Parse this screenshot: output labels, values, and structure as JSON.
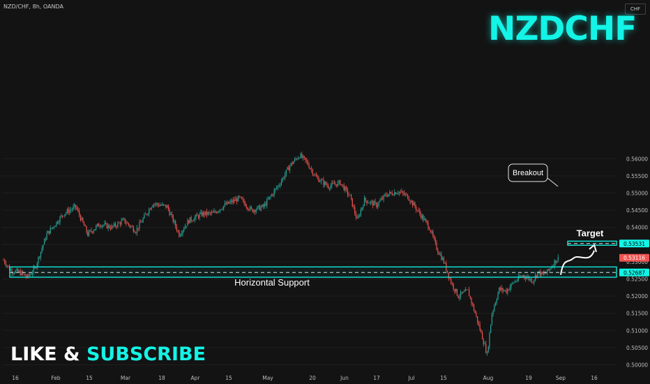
{
  "header": {
    "symbol": "NZD/CHF, 8h, OANDA",
    "currency": "CHF"
  },
  "overlay": {
    "title": "NZDCHF",
    "cta_left": "LIKE & ",
    "cta_right": "SUBSCRIBE",
    "support_label": "Horizontal Support",
    "target_label": "Target",
    "breakout_label": "Breakout"
  },
  "colors": {
    "up": "#26a69a",
    "down": "#ef5350",
    "accent": "#13f4e6",
    "background": "#131313"
  },
  "chart_data": {
    "type": "candlestick",
    "title": "",
    "ylim": [
      0.4985,
      0.5615
    ],
    "y_ticks": [
      "0.56000",
      "0.55500",
      "0.55000",
      "0.54500",
      "0.54000",
      "0.53500",
      "0.53000",
      "0.52500",
      "0.52000",
      "0.51500",
      "0.51000",
      "0.50500",
      "0.50000"
    ],
    "x_ticks": [
      "16",
      "Feb",
      "15",
      "Mar",
      "18",
      "Apr",
      "15",
      "May",
      "20",
      "Jun",
      "17",
      "Jul",
      "15",
      "Aug",
      "19",
      "Sep",
      "16"
    ],
    "price_tags": {
      "target": "0.53531",
      "current": "0.53116",
      "support": "0.52687"
    },
    "levels": {
      "support_zone": [
        0.5255,
        0.5285
      ],
      "support_line": 0.52687,
      "target_zone": [
        0.5348,
        0.536
      ],
      "target_line": 0.53531
    },
    "trend_anchors": [
      [
        0,
        0.5305
      ],
      [
        6,
        0.5275
      ],
      [
        14,
        0.5268
      ],
      [
        20,
        0.5255
      ],
      [
        26,
        0.528
      ],
      [
        36,
        0.538
      ],
      [
        50,
        0.544
      ],
      [
        60,
        0.546
      ],
      [
        70,
        0.538
      ],
      [
        80,
        0.541
      ],
      [
        90,
        0.54
      ],
      [
        100,
        0.542
      ],
      [
        110,
        0.539
      ],
      [
        124,
        0.547
      ],
      [
        136,
        0.546
      ],
      [
        146,
        0.538
      ],
      [
        154,
        0.542
      ],
      [
        166,
        0.544
      ],
      [
        174,
        0.544
      ],
      [
        184,
        0.5465
      ],
      [
        196,
        0.5485
      ],
      [
        206,
        0.545
      ],
      [
        216,
        0.546
      ],
      [
        230,
        0.553
      ],
      [
        238,
        0.558
      ],
      [
        246,
        0.561
      ],
      [
        252,
        0.559
      ],
      [
        260,
        0.5545
      ],
      [
        270,
        0.552
      ],
      [
        280,
        0.553
      ],
      [
        288,
        0.549
      ],
      [
        294,
        0.542
      ],
      [
        300,
        0.548
      ],
      [
        310,
        0.5465
      ],
      [
        318,
        0.5495
      ],
      [
        328,
        0.5505
      ],
      [
        336,
        0.549
      ],
      [
        346,
        0.544
      ],
      [
        354,
        0.54
      ],
      [
        360,
        0.534
      ],
      [
        366,
        0.53
      ],
      [
        372,
        0.524
      ],
      [
        378,
        0.52
      ],
      [
        386,
        0.5215
      ],
      [
        392,
        0.515
      ],
      [
        398,
        0.508
      ],
      [
        402,
        0.503
      ],
      [
        406,
        0.515
      ],
      [
        412,
        0.522
      ],
      [
        418,
        0.5215
      ],
      [
        424,
        0.524
      ],
      [
        432,
        0.526
      ],
      [
        440,
        0.5245
      ],
      [
        444,
        0.527
      ],
      [
        448,
        0.5262
      ],
      [
        452,
        0.527
      ],
      [
        458,
        0.53
      ],
      [
        462,
        0.53116
      ]
    ],
    "projection": [
      [
        0.53116,
        0.5262
      ],
      [
        0.53116,
        0.5275
      ],
      [
        0.529,
        0.531
      ],
      [
        0.53531,
        0.5353
      ]
    ]
  }
}
